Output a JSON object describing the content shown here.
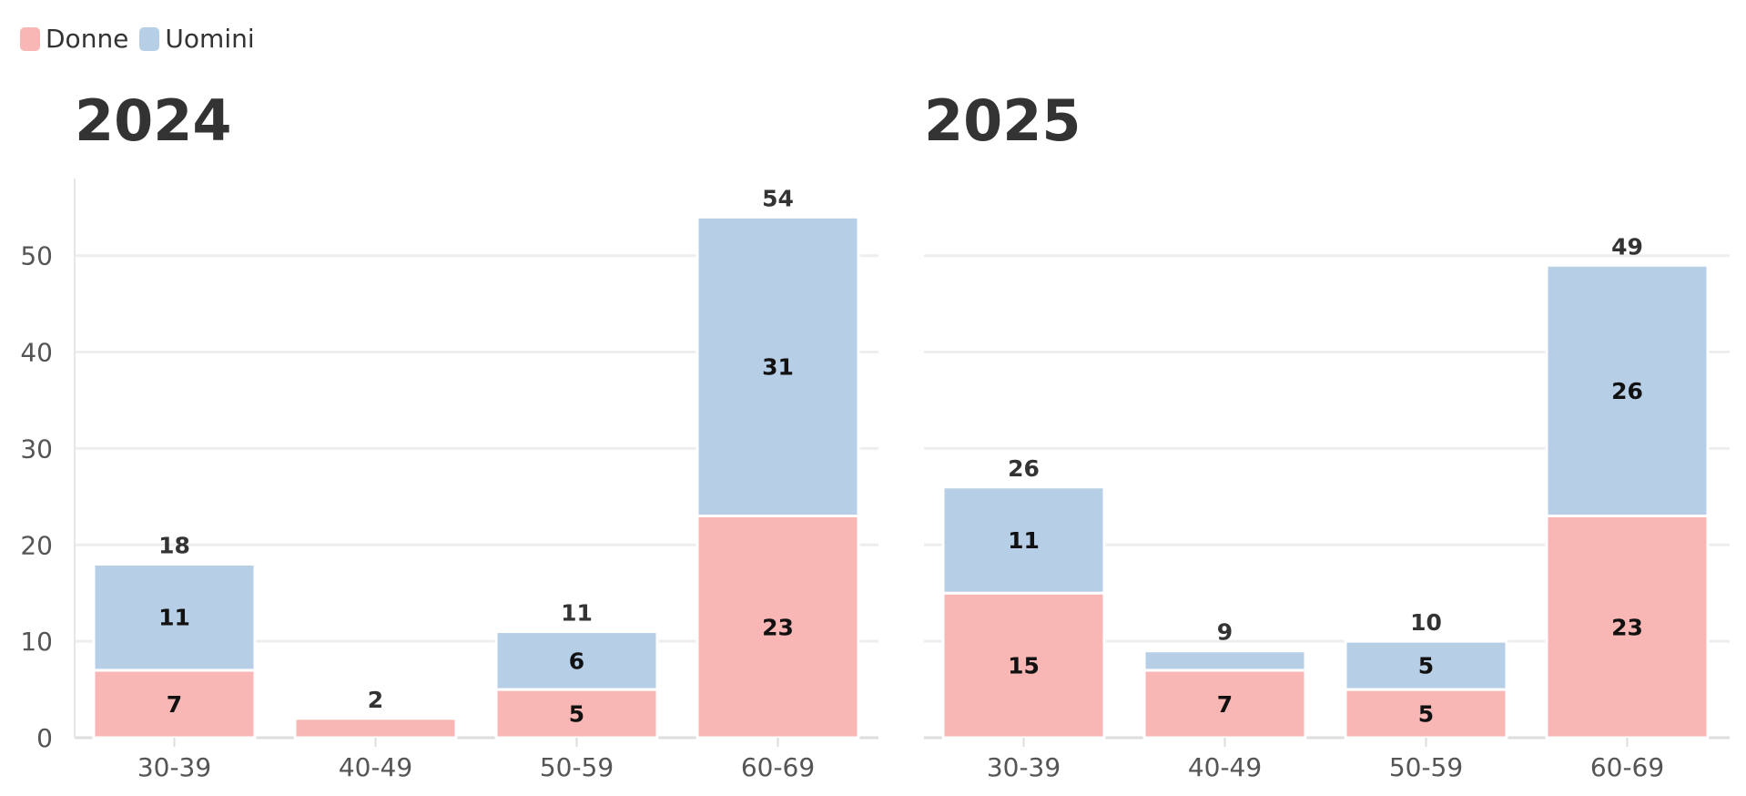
{
  "legend": [
    {
      "label": "Donne",
      "color": "#f8b7b4"
    },
    {
      "label": "Uomini",
      "color": "#b7cfe6"
    }
  ],
  "chart_data": [
    {
      "type": "bar",
      "stacked": true,
      "title": "2024",
      "categories": [
        "30-39",
        "40-49",
        "50-59",
        "60-69"
      ],
      "series": [
        {
          "name": "Donne",
          "values": [
            7,
            2,
            5,
            23
          ],
          "labels": [
            "7",
            "",
            "5",
            "23"
          ]
        },
        {
          "name": "Uomini",
          "values": [
            11,
            0,
            6,
            31
          ],
          "labels": [
            "11",
            "",
            "6",
            "31"
          ]
        }
      ],
      "totals": [
        18,
        2,
        11,
        54
      ],
      "ylim": [
        0,
        58
      ],
      "yticks": [
        0,
        10,
        20,
        30,
        40,
        50
      ],
      "grid": true
    },
    {
      "type": "bar",
      "stacked": true,
      "title": "2025",
      "categories": [
        "30-39",
        "40-49",
        "50-59",
        "60-69"
      ],
      "series": [
        {
          "name": "Donne",
          "values": [
            15,
            7,
            5,
            23
          ],
          "labels": [
            "15",
            "7",
            "5",
            "23"
          ]
        },
        {
          "name": "Uomini",
          "values": [
            11,
            2,
            5,
            26
          ],
          "labels": [
            "11",
            "",
            "5",
            "26"
          ]
        }
      ],
      "totals": [
        26,
        9,
        10,
        49
      ],
      "ylim": [
        0,
        58
      ],
      "yticks": [
        0,
        10,
        20,
        30,
        40,
        50
      ],
      "grid": true
    }
  ]
}
